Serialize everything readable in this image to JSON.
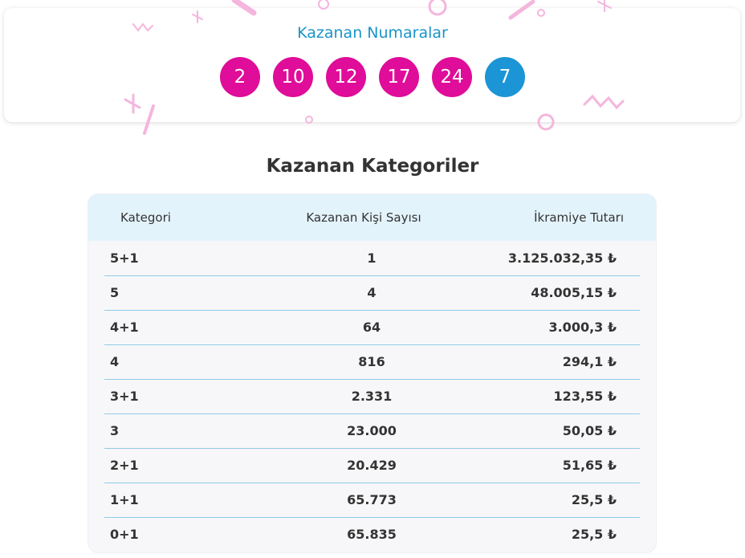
{
  "header": {
    "title": "Kazanan Numaralar",
    "numbers": [
      2,
      10,
      12,
      17,
      24
    ],
    "plus_number": 7
  },
  "table": {
    "title": "Kazanan Kategoriler",
    "columns": [
      "Kategori",
      "Kazanan Kişi Sayısı",
      "İkramiye Tutarı"
    ],
    "rows": [
      [
        "5+1",
        "1",
        "3.125.032,35 ₺"
      ],
      [
        "5",
        "4",
        "48.005,15 ₺"
      ],
      [
        "4+1",
        "64",
        "3.000,3 ₺"
      ],
      [
        "4",
        "816",
        "294,1 ₺"
      ],
      [
        "3+1",
        "2.331",
        "123,55 ₺"
      ],
      [
        "3",
        "23.000",
        "50,05 ₺"
      ],
      [
        "2+1",
        "20.429",
        "51,65 ₺"
      ],
      [
        "1+1",
        "65.773",
        "25,5 ₺"
      ],
      [
        "0+1",
        "65.835",
        "25,5 ₺"
      ]
    ]
  }
}
